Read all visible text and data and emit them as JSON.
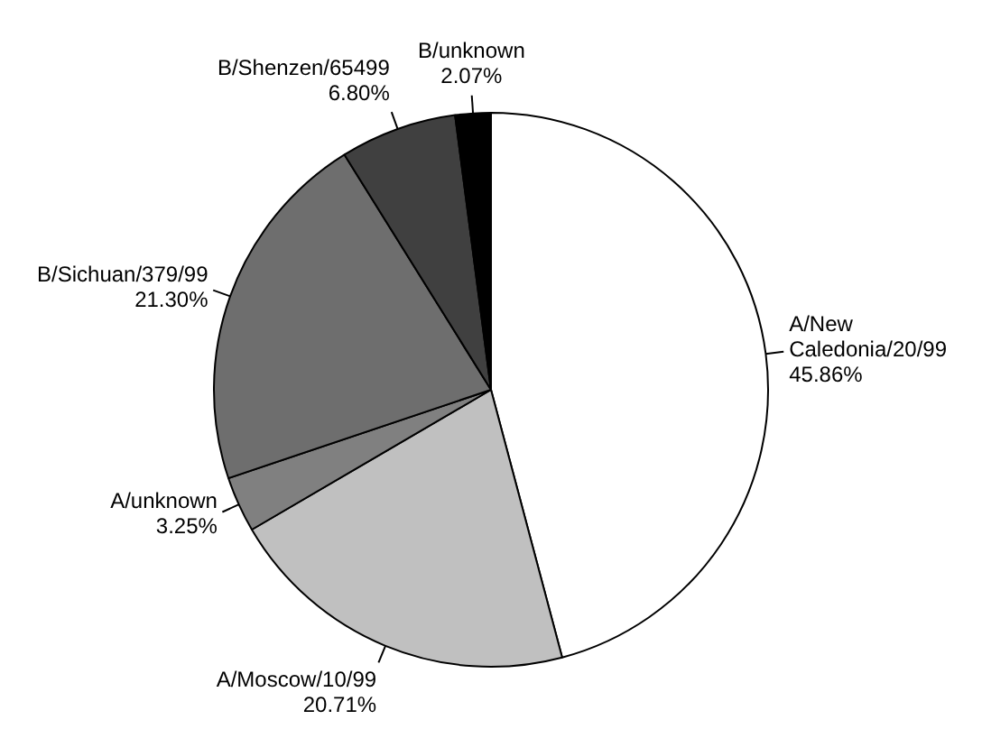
{
  "chart_data": {
    "type": "pie",
    "categories": [
      "A/New Caledonia/20/99",
      "A/Moscow/10/99",
      "A/unknown",
      "B/Sichuan/379/99",
      "B/Shenzen/65499",
      "B/unknown"
    ],
    "values": [
      45.86,
      20.71,
      3.25,
      21.3,
      6.8,
      2.07
    ],
    "colors": [
      "#ffffff",
      "#c0c0c0",
      "#808080",
      "#6e6e6e",
      "#404040",
      "#000000"
    ],
    "value_labels": [
      "45.86%",
      "20.71%",
      "3.25%",
      "21.30%",
      "6.80%",
      "2.07%"
    ],
    "legend": false
  }
}
